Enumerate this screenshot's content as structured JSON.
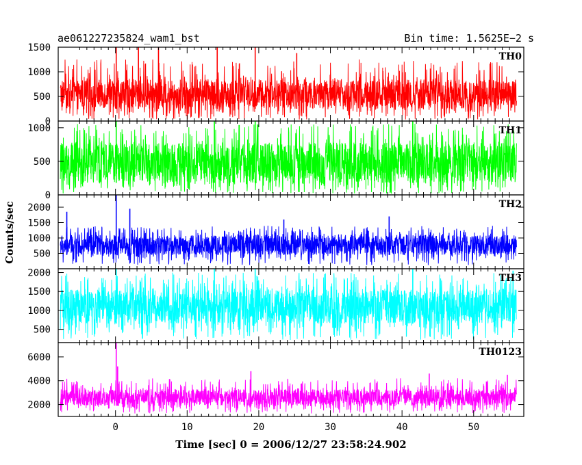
{
  "header": {
    "title": "ae061227235824_wam1_bst",
    "bin_time": "Bin time: 1.5625E−2 s"
  },
  "chart_data": {
    "type": "line",
    "title": "ae061227235824_wam1_bst",
    "xlabel": "Time [sec] 0 = 2006/12/27 23:58:24.902",
    "ylabel": "Counts/sec",
    "xlim": [
      -8,
      57
    ],
    "x_ticks": [
      0,
      10,
      20,
      30,
      40,
      50
    ],
    "data_range": [
      -7.7,
      56
    ],
    "bin_time": 0.015625,
    "panels": [
      {
        "name": "TH0",
        "color": "#ff0000",
        "ylim": [
          0,
          1500
        ],
        "yticks": [
          0,
          500,
          1000,
          1500
        ],
        "typical_low": 250,
        "typical_high": 850,
        "floor": 30,
        "noise_peak": 1250,
        "spikes": [
          {
            "x": 0.1,
            "y": 1520
          },
          {
            "x": 3.2,
            "y": 1520
          },
          {
            "x": 6.0,
            "y": 1500
          },
          {
            "x": 14.2,
            "y": 1520
          },
          {
            "x": 19.5,
            "y": 1510
          },
          {
            "x": 25.3,
            "y": 1380
          }
        ]
      },
      {
        "name": "TH1",
        "color": "#00ff00",
        "ylim": [
          0,
          1100
        ],
        "yticks": [
          0,
          500,
          1000
        ],
        "typical_low": 180,
        "typical_high": 780,
        "floor": 20,
        "noise_peak": 1060,
        "spikes": [
          {
            "x": 0.1,
            "y": 1100
          },
          {
            "x": 13.8,
            "y": 1100
          },
          {
            "x": 19.5,
            "y": 1100
          },
          {
            "x": 41.5,
            "y": 1100
          }
        ]
      },
      {
        "name": "TH2",
        "color": "#0000ff",
        "ylim": [
          0,
          2400
        ],
        "yticks": [
          500,
          1000,
          1500,
          2000
        ],
        "typical_low": 450,
        "typical_high": 1100,
        "floor": 120,
        "noise_peak": 1400,
        "spikes": [
          {
            "x": 0.1,
            "y": 2400
          },
          {
            "x": -6.8,
            "y": 1850
          },
          {
            "x": 2.0,
            "y": 1950
          },
          {
            "x": 23.5,
            "y": 1600
          },
          {
            "x": 38.2,
            "y": 1700
          }
        ]
      },
      {
        "name": "TH3",
        "color": "#00ffff",
        "ylim": [
          150,
          2100
        ],
        "yticks": [
          500,
          1000,
          1500,
          2000
        ],
        "typical_low": 650,
        "typical_high": 1550,
        "floor": 220,
        "noise_peak": 2000,
        "spikes": [
          {
            "x": 0.1,
            "y": 2100
          },
          {
            "x": 13.8,
            "y": 2100
          },
          {
            "x": 19.5,
            "y": 2100
          },
          {
            "x": 41.5,
            "y": 2100
          },
          {
            "x": 55.5,
            "y": 2050
          }
        ]
      },
      {
        "name": "TH0123",
        "color": "#ff00ff",
        "ylim": [
          1000,
          7200
        ],
        "yticks": [
          2000,
          4000,
          6000
        ],
        "typical_low": 1900,
        "typical_high": 3300,
        "floor": 1250,
        "noise_peak": 4200,
        "spikes": [
          {
            "x": 0.1,
            "y": 7200
          },
          {
            "x": 0.3,
            "y": 5200
          },
          {
            "x": 18.9,
            "y": 4800
          },
          {
            "x": 43.8,
            "y": 4600
          },
          {
            "x": 54.7,
            "y": 4500
          }
        ]
      }
    ]
  }
}
